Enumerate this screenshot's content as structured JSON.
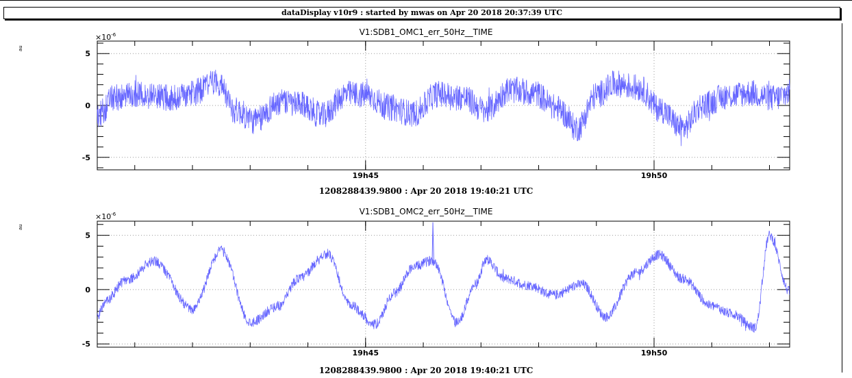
{
  "header": {
    "banner": "dataDisplay v10r9 : started by mwas on Apr 20 2018 20:37:39 UTC"
  },
  "colors": {
    "trace": "#6666ff",
    "grid": "#999999",
    "frame": "#000000"
  },
  "chart_data": [
    {
      "type": "line",
      "title": "V1:SDB1_OMC1_err_50Hz__TIME",
      "ylabel": "au",
      "xlabel": "1208288439.9800 : Apr 20 2018 19:40:21 UTC",
      "y_exponent": "×10",
      "y_exponent_power": "-6",
      "ylim": [
        -6.2,
        6.2
      ],
      "yticks": [
        "5",
        "0",
        "-5"
      ],
      "xlim": [
        "19:40:21",
        "19:52:21"
      ],
      "xticks": [
        "19h45",
        "19h50"
      ],
      "grid": true,
      "noise": 1.3,
      "series": [
        {
          "x": [
            "19:40:21",
            "19:40:40",
            "19:41:10",
            "19:41:40",
            "19:42:00",
            "19:42:25",
            "19:42:45",
            "19:43:05",
            "19:43:30",
            "19:43:55",
            "19:44:15",
            "19:44:40",
            "19:45:00",
            "19:45:25",
            "19:45:50",
            "19:46:15",
            "19:46:40",
            "19:47:05",
            "19:47:30",
            "19:47:55",
            "19:48:20",
            "19:48:40",
            "19:49:00",
            "19:49:20",
            "19:49:45",
            "19:50:05",
            "19:50:30",
            "19:50:50",
            "19:51:15",
            "19:51:40",
            "19:52:05",
            "19:52:21"
          ],
          "values": [
            -1.0,
            0.8,
            1.0,
            0.7,
            1.2,
            2.3,
            -0.5,
            -1.5,
            0.3,
            0.0,
            -1.0,
            1.1,
            1.0,
            -0.2,
            -0.8,
            1.1,
            0.8,
            -0.5,
            1.5,
            1.2,
            -0.3,
            -2.2,
            1.0,
            2.1,
            1.7,
            -0.3,
            -2.2,
            0.0,
            0.9,
            1.2,
            0.7,
            1.2
          ]
        }
      ]
    },
    {
      "type": "line",
      "title": "V1:SDB1_OMC2_err_50Hz__TIME",
      "ylabel": "au",
      "xlabel": "1208288439.9800 : Apr 20 2018 19:40:21 UTC",
      "y_exponent": "×10",
      "y_exponent_power": "-6",
      "ylim": [
        -5.3,
        6.3
      ],
      "yticks": [
        "5",
        "0",
        "-5"
      ],
      "xlim": [
        "19:40:21",
        "19:52:21"
      ],
      "xticks": [
        "19h45",
        "19h50"
      ],
      "grid": true,
      "noise": 0.45,
      "spike": {
        "x": "19:46:10",
        "value": 6.2
      },
      "series": [
        {
          "x": [
            "19:40:21",
            "19:40:30",
            "19:40:50",
            "19:41:20",
            "19:42:00",
            "19:42:30",
            "19:43:00",
            "19:43:30",
            "19:43:50",
            "19:44:20",
            "19:44:45",
            "19:45:10",
            "19:45:30",
            "19:45:50",
            "19:46:10",
            "19:46:35",
            "19:46:55",
            "19:47:05",
            "19:47:25",
            "19:47:50",
            "19:48:15",
            "19:48:45",
            "19:49:10",
            "19:49:40",
            "19:50:05",
            "19:50:30",
            "19:51:00",
            "19:51:20",
            "19:51:45",
            "19:52:00",
            "19:52:21"
          ],
          "values": [
            -2.5,
            -1.0,
            0.8,
            2.6,
            -1.8,
            3.6,
            -3.0,
            -1.5,
            1.0,
            3.3,
            -1.5,
            -3.2,
            -0.3,
            2.1,
            2.7,
            -3.0,
            0.5,
            2.8,
            1.0,
            0.4,
            -0.5,
            0.5,
            -2.5,
            1.5,
            3.2,
            1.0,
            -1.5,
            -2.2,
            -3.5,
            5.0,
            -0.2
          ]
        }
      ]
    }
  ]
}
